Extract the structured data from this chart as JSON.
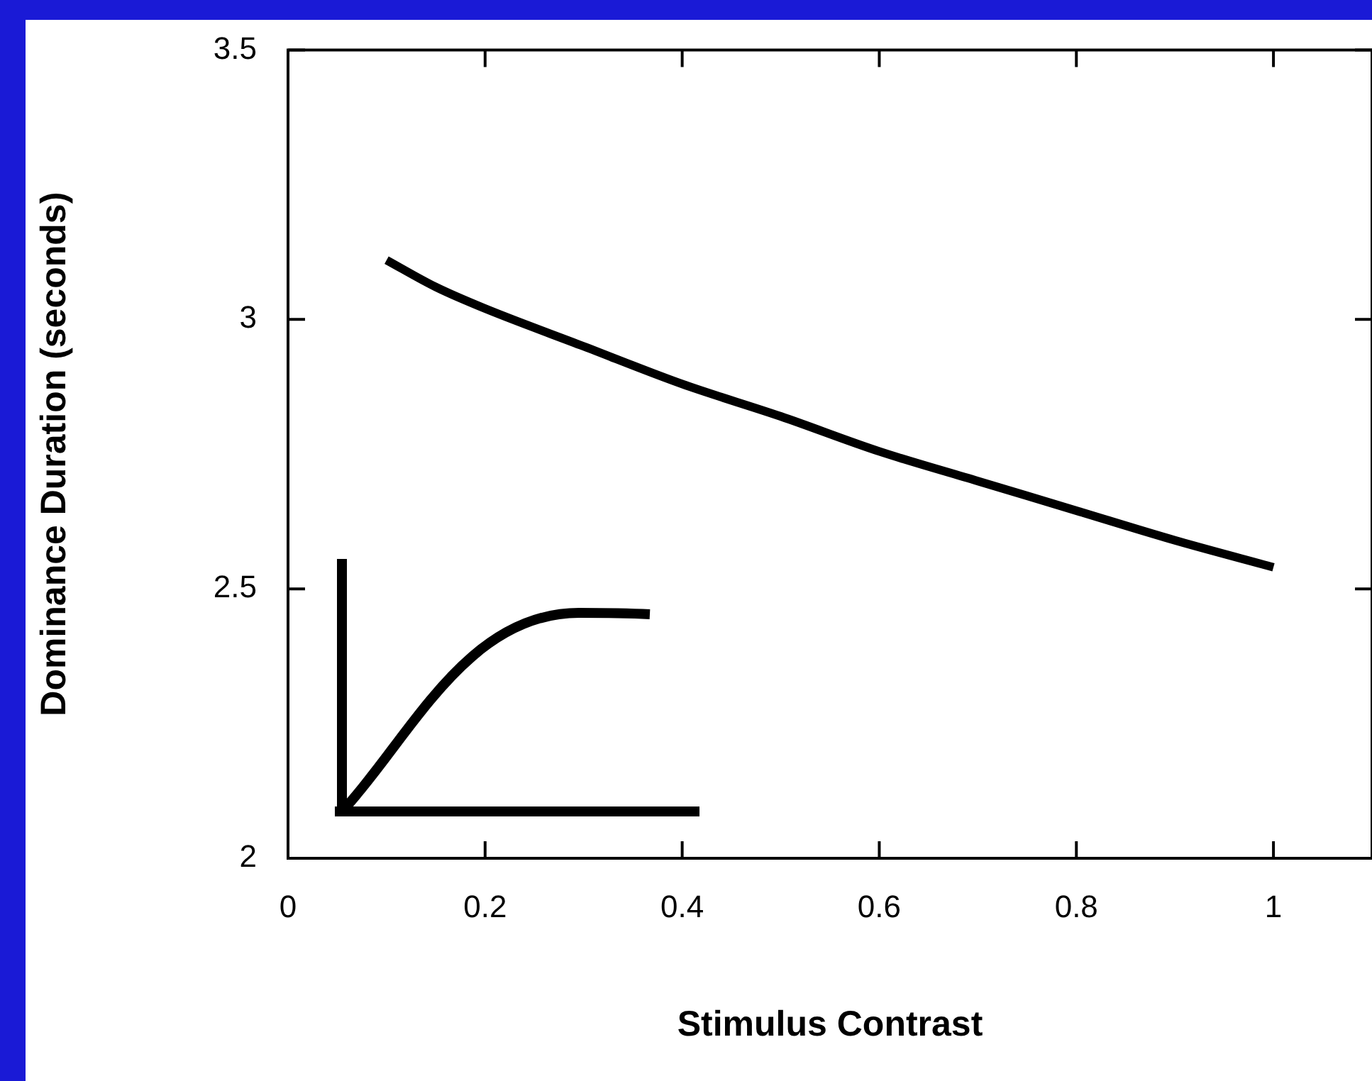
{
  "chart_data": {
    "type": "line",
    "xlabel": "Stimulus Contrast",
    "ylabel": "Dominance Duration (seconds)",
    "x": [
      0.1,
      0.15,
      0.2,
      0.3,
      0.4,
      0.5,
      0.6,
      0.7,
      0.8,
      0.9,
      1.0
    ],
    "series": [
      {
        "color": "#000000",
        "values": [
          3.11,
          3.06,
          3.02,
          2.95,
          2.88,
          2.82,
          2.755,
          2.7,
          2.645,
          2.59,
          2.54
        ]
      }
    ],
    "xlim": [
      0,
      1.1
    ],
    "xticks": [
      0,
      0.2,
      0.4,
      0.6,
      0.8,
      1
    ],
    "ylim": [
      2,
      3.5
    ],
    "yticks": [
      2,
      2.5,
      3,
      3.5
    ],
    "grid": false,
    "legend": false,
    "marker": "none",
    "line_style": "solid"
  }
}
